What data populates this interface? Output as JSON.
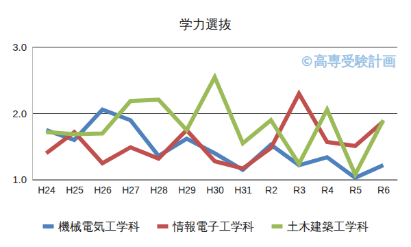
{
  "chart_data": {
    "type": "line",
    "title": "学力選抜",
    "annotations": [
      "©高専受験計画"
    ],
    "categories": [
      "H24",
      "H25",
      "H26",
      "H27",
      "H28",
      "H29",
      "H30",
      "H31",
      "R2",
      "R3",
      "R4",
      "R5",
      "R6"
    ],
    "series": [
      {
        "name": "機械電気工学科",
        "color": "#4f81bd",
        "values": [
          1.75,
          1.6,
          2.06,
          1.9,
          1.36,
          1.62,
          1.4,
          1.15,
          1.53,
          1.22,
          1.34,
          1.03,
          1.22
        ]
      },
      {
        "name": "情報電子工学科",
        "color": "#c0504d",
        "values": [
          1.4,
          1.72,
          1.25,
          1.49,
          1.32,
          1.75,
          1.28,
          1.17,
          1.48,
          2.3,
          1.57,
          1.51,
          1.88
        ]
      },
      {
        "name": "土木建築工学科",
        "color": "#9bbb59",
        "values": [
          1.72,
          1.69,
          1.7,
          2.19,
          2.21,
          1.75,
          2.55,
          1.55,
          1.9,
          1.24,
          2.06,
          1.08,
          1.9
        ]
      }
    ],
    "ylim": [
      1,
      3
    ],
    "yticks": [
      {
        "value": 1,
        "label": "1.0"
      },
      {
        "value": 2,
        "label": "2.0"
      },
      {
        "value": 3,
        "label": "3.0"
      }
    ],
    "grid": true,
    "legend": "bottom"
  }
}
